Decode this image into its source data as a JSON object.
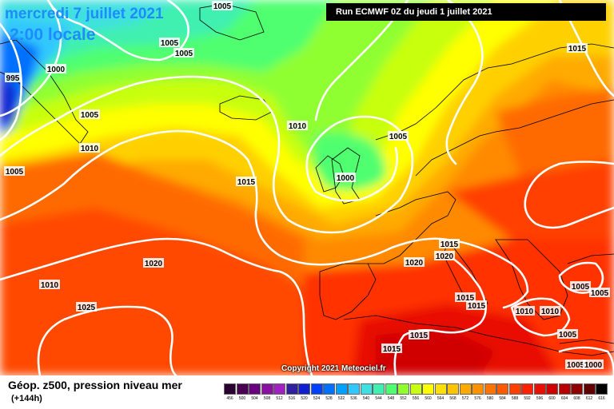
{
  "header": {
    "date_line": "mercredi 7 juillet 2021",
    "time_line": "2:00 locale",
    "run_banner": "Run ECMWF 0Z du jeudi 1 juillet 2021"
  },
  "footer": {
    "parameter": "Géop. z500, pression niveau mer",
    "lead_time": "(+144h)",
    "copyright": "Copyright 2021 Meteociel.fr"
  },
  "color_scale": {
    "labels": [
      "456",
      "500",
      "504",
      "508",
      "512",
      "516",
      "520",
      "524",
      "528",
      "532",
      "536",
      "540",
      "544",
      "548",
      "552",
      "556",
      "560",
      "564",
      "568",
      "572",
      "576",
      "580",
      "584",
      "588",
      "592",
      "596",
      "600",
      "604",
      "608",
      "612",
      "616"
    ],
    "colors": [
      "#2a0030",
      "#4a0050",
      "#6a0080",
      "#8a10a0",
      "#a020c0",
      "#3020a0",
      "#1020d0",
      "#0040ff",
      "#0070ff",
      "#00a0ff",
      "#30c8ff",
      "#40e0e0",
      "#40f0b0",
      "#50ff70",
      "#90ff30",
      "#c8ff10",
      "#ffff00",
      "#ffe000",
      "#ffc400",
      "#ffaa00",
      "#ff9000",
      "#ff7400",
      "#ff5a00",
      "#ff4000",
      "#ff2000",
      "#e81000",
      "#d00000",
      "#b80000",
      "#900000",
      "#600000",
      "#000000"
    ]
  },
  "isobars": [
    {
      "label": "1005"
    },
    {
      "label": "1005"
    },
    {
      "label": "1005"
    },
    {
      "label": "1000"
    },
    {
      "label": "995"
    },
    {
      "label": "1005"
    },
    {
      "label": "1010"
    },
    {
      "label": "1005"
    },
    {
      "label": "1010"
    },
    {
      "label": "1015"
    },
    {
      "label": "1005"
    },
    {
      "label": "1000"
    },
    {
      "label": "1015"
    },
    {
      "label": "1020"
    },
    {
      "label": "1010"
    },
    {
      "label": "1025"
    },
    {
      "label": "1015"
    },
    {
      "label": "1020"
    },
    {
      "label": "1020"
    },
    {
      "label": "1015"
    },
    {
      "label": "1015"
    },
    {
      "label": "1015"
    },
    {
      "label": "1015"
    },
    {
      "label": "1010"
    },
    {
      "label": "1010"
    },
    {
      "label": "1005"
    },
    {
      "label": "1005"
    },
    {
      "label": "1005"
    },
    {
      "label": "1005"
    },
    {
      "label": "1000"
    }
  ]
}
